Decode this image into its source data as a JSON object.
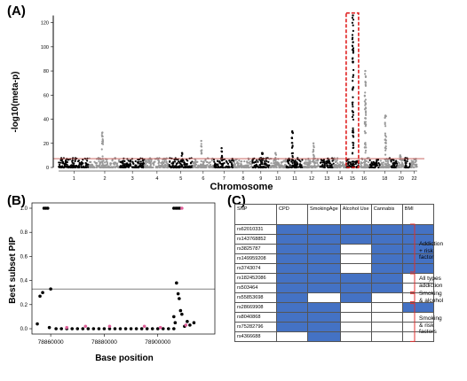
{
  "panels": {
    "a": {
      "label": "(A)"
    },
    "b": {
      "label": "(B)"
    },
    "c": {
      "label": "(C)"
    }
  },
  "chart_data": [
    {
      "type": "scatter",
      "panel": "A",
      "title": "",
      "xlabel": "Chromosome",
      "ylabel": "-log10(meta-p)",
      "ylim": [
        0,
        130
      ],
      "y_ticks": [
        0,
        20,
        40,
        60,
        80,
        100,
        120
      ],
      "x_ticks": [
        "1",
        "2",
        "3",
        "4",
        "5",
        "6",
        "7",
        "8",
        "9",
        "10",
        "11",
        "12",
        "13",
        "14",
        "15",
        "16",
        "18",
        "20",
        "22"
      ],
      "threshold_line": 7.3,
      "colors": {
        "odd": "#000000",
        "even": "#999999",
        "threshold": "#c0504d",
        "highlight": "#e02020"
      },
      "highlight_chromosome": "15",
      "peaks": [
        {
          "chromosome": "2",
          "max_y": 29
        },
        {
          "chromosome": "5",
          "max_y": 12
        },
        {
          "chromosome": "6",
          "max_y": 22
        },
        {
          "chromosome": "7",
          "max_y": 16
        },
        {
          "chromosome": "9",
          "max_y": 12
        },
        {
          "chromosome": "10",
          "max_y": 12
        },
        {
          "chromosome": "11",
          "max_y": 30
        },
        {
          "chromosome": "12",
          "max_y": 20
        },
        {
          "chromosome": "15",
          "max_y": 126
        },
        {
          "chromosome": "16",
          "max_y": 80
        },
        {
          "chromosome": "18",
          "max_y": 43
        },
        {
          "chromosome": "20",
          "max_y": 10
        }
      ]
    },
    {
      "type": "scatter",
      "panel": "B",
      "title": "",
      "xlabel": "Base position",
      "ylabel": "Best subset PIP",
      "xlim": [
        78853000,
        78918000
      ],
      "ylim": [
        0,
        1
      ],
      "x_ticks": [
        78860000,
        78880000,
        78900000
      ],
      "y_ticks": [
        0.0,
        0.2,
        0.4,
        0.6,
        0.8,
        1.0
      ],
      "threshold_line": 0.33,
      "colors": {
        "points": "#000000",
        "highlight": "#e0609a",
        "threshold": "#000000"
      },
      "points": [
        {
          "x": 78855000,
          "y": 0.04
        },
        {
          "x": 78856000,
          "y": 0.27
        },
        {
          "x": 78857000,
          "y": 0.3
        },
        {
          "x": 78857500,
          "y": 1.0
        },
        {
          "x": 78858200,
          "y": 1.0
        },
        {
          "x": 78858900,
          "y": 1.0
        },
        {
          "x": 78859500,
          "y": 0.01
        },
        {
          "x": 78860000,
          "y": 0.33
        },
        {
          "x": 78862000,
          "y": 0.0
        },
        {
          "x": 78864000,
          "y": 0.0
        },
        {
          "x": 78866000,
          "y": 0.0
        },
        {
          "x": 78868000,
          "y": 0.0
        },
        {
          "x": 78870000,
          "y": 0.0
        },
        {
          "x": 78872000,
          "y": 0.0
        },
        {
          "x": 78874000,
          "y": 0.0
        },
        {
          "x": 78876000,
          "y": 0.0
        },
        {
          "x": 78878000,
          "y": 0.0
        },
        {
          "x": 78880000,
          "y": 0.0
        },
        {
          "x": 78882000,
          "y": 0.0
        },
        {
          "x": 78884000,
          "y": 0.0
        },
        {
          "x": 78886000,
          "y": 0.0
        },
        {
          "x": 78888000,
          "y": 0.0
        },
        {
          "x": 78890000,
          "y": 0.0
        },
        {
          "x": 78892000,
          "y": 0.0
        },
        {
          "x": 78894000,
          "y": 0.0
        },
        {
          "x": 78896000,
          "y": 0.0
        },
        {
          "x": 78898000,
          "y": 0.0
        },
        {
          "x": 78900000,
          "y": 0.0
        },
        {
          "x": 78902000,
          "y": 0.0
        },
        {
          "x": 78904000,
          "y": 0.0
        },
        {
          "x": 78906000,
          "y": 1.0
        },
        {
          "x": 78906800,
          "y": 1.0
        },
        {
          "x": 78907500,
          "y": 1.0
        },
        {
          "x": 78908200,
          "y": 1.0
        },
        {
          "x": 78907000,
          "y": 0.38
        },
        {
          "x": 78907600,
          "y": 0.29
        },
        {
          "x": 78908000,
          "y": 0.25
        },
        {
          "x": 78908500,
          "y": 0.15
        },
        {
          "x": 78906000,
          "y": 0.1
        },
        {
          "x": 78906500,
          "y": 0.05
        },
        {
          "x": 78909000,
          "y": 0.12
        },
        {
          "x": 78910000,
          "y": 0.02
        },
        {
          "x": 78911000,
          "y": 0.06
        },
        {
          "x": 78912000,
          "y": 0.03
        },
        {
          "x": 78913500,
          "y": 0.05
        },
        {
          "x": 78906000,
          "y": 0.0
        }
      ],
      "highlight_points": [
        {
          "x": 78866000,
          "y": 0.01
        },
        {
          "x": 78873000,
          "y": 0.02
        },
        {
          "x": 78882000,
          "y": 0.02
        },
        {
          "x": 78895000,
          "y": 0.02
        },
        {
          "x": 78901000,
          "y": 0.01
        },
        {
          "x": 78909000,
          "y": 1.0
        },
        {
          "x": 78910500,
          "y": 0.03
        }
      ]
    },
    {
      "type": "table",
      "panel": "C",
      "columns": [
        "SNP",
        "CPD",
        "SmokingAge",
        "Alcohol Use",
        "Cannabis",
        "BMI"
      ],
      "rows": [
        {
          "snp": "rs62010331",
          "cells": [
            1,
            1,
            1,
            1,
            1
          ]
        },
        {
          "snp": "rs143768852",
          "cells": [
            1,
            1,
            1,
            1,
            1
          ]
        },
        {
          "snp": "rs3825787",
          "cells": [
            1,
            1,
            0,
            1,
            1
          ]
        },
        {
          "snp": "rs149959208",
          "cells": [
            1,
            1,
            0,
            1,
            1
          ]
        },
        {
          "snp": "rs3743074",
          "cells": [
            1,
            1,
            0,
            1,
            1
          ]
        },
        {
          "snp": "rs182452086",
          "cells": [
            1,
            1,
            1,
            1,
            0
          ]
        },
        {
          "snp": "rs503464",
          "cells": [
            1,
            1,
            1,
            1,
            0
          ]
        },
        {
          "snp": "rs55853698",
          "cells": [
            1,
            0,
            1,
            0,
            0
          ]
        },
        {
          "snp": "rs28669908",
          "cells": [
            1,
            1,
            0,
            0,
            1
          ]
        },
        {
          "snp": "rs8040868",
          "cells": [
            1,
            1,
            0,
            0,
            0
          ]
        },
        {
          "snp": "rs75282796",
          "cells": [
            1,
            1,
            0,
            0,
            0
          ]
        },
        {
          "snp": "rs4366688",
          "cells": [
            0,
            1,
            0,
            0,
            0
          ]
        }
      ],
      "groups": [
        {
          "label": "Addiction + risk factor",
          "rows": [
            0,
            4
          ]
        },
        {
          "label": "All types addiction",
          "rows": [
            5,
            6
          ]
        },
        {
          "label": "Smoking & alcohol",
          "rows": [
            7,
            7
          ]
        },
        {
          "label": "Smoking & risk factors",
          "rows": [
            8,
            11
          ]
        }
      ],
      "colors": {
        "on": "#4472c4",
        "off": "#ffffff",
        "bracket": "#e03030"
      }
    }
  ]
}
